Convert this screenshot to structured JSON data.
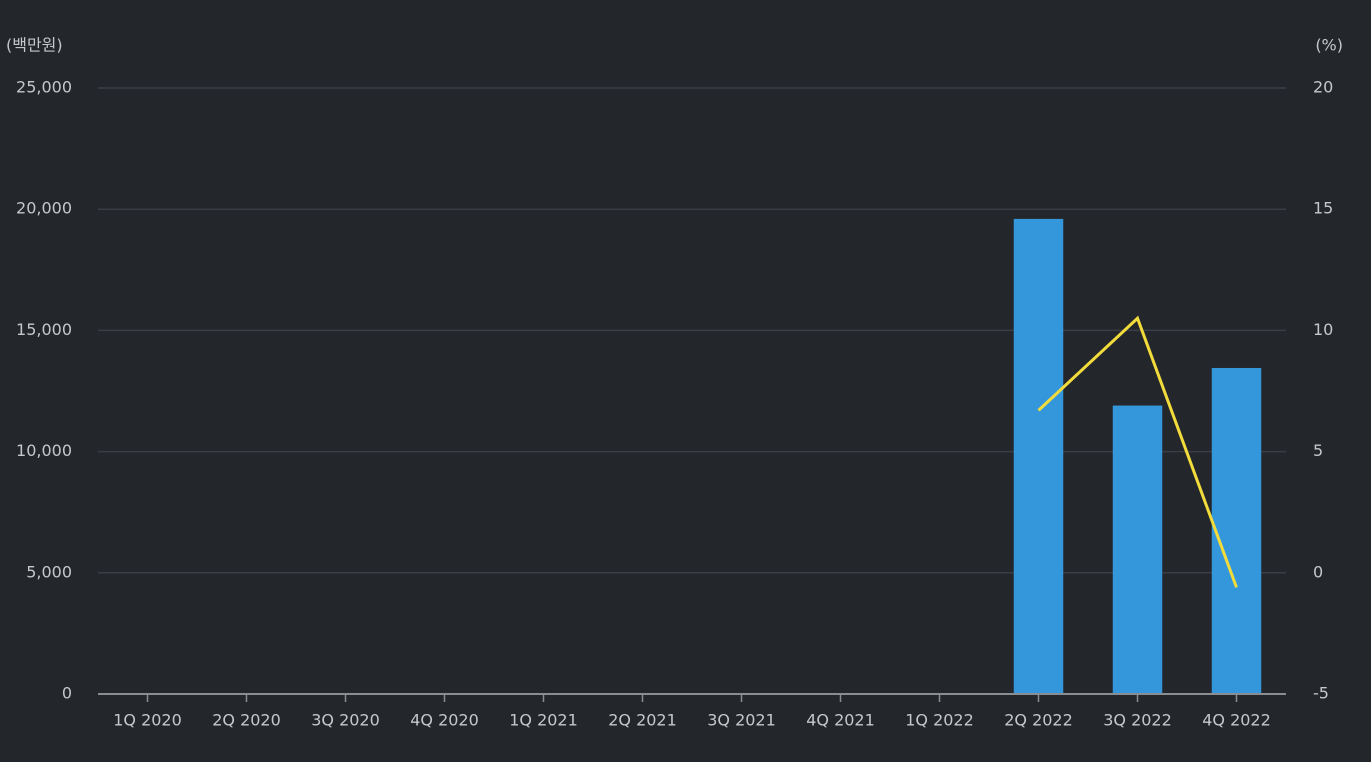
{
  "chart_data": {
    "type": "bar-line",
    "y_label": "(백만원)",
    "y2_label": "(%)",
    "categories": [
      "1Q 2020",
      "2Q 2020",
      "3Q 2020",
      "4Q 2020",
      "1Q 2021",
      "2Q 2021",
      "3Q 2021",
      "4Q 2021",
      "1Q 2022",
      "2Q 2022",
      "3Q 2022",
      "4Q 2022"
    ],
    "series": [
      {
        "type": "bar",
        "color": "#3597db",
        "values": [
          null,
          null,
          null,
          null,
          null,
          null,
          null,
          null,
          null,
          19600,
          11900,
          13450
        ]
      },
      {
        "type": "line",
        "axis": "y2",
        "color": "#f2dc3c",
        "values": [
          null,
          null,
          null,
          null,
          null,
          null,
          null,
          null,
          null,
          6.7,
          10.5,
          -0.6
        ]
      }
    ],
    "ylim": [
      0,
      25000
    ],
    "yticks": [
      0,
      {
        "value": 5000,
        "label": "5,000"
      },
      {
        "value": 10000,
        "label": "10,000"
      },
      {
        "value": 15000,
        "label": "15,000"
      },
      {
        "value": 20000,
        "label": "20,000"
      },
      {
        "value": 25000,
        "label": "25,000"
      }
    ],
    "y2lim": [
      -5,
      20
    ],
    "y2ticks": [
      -5,
      0,
      5,
      10,
      15,
      20
    ],
    "grid": true
  }
}
